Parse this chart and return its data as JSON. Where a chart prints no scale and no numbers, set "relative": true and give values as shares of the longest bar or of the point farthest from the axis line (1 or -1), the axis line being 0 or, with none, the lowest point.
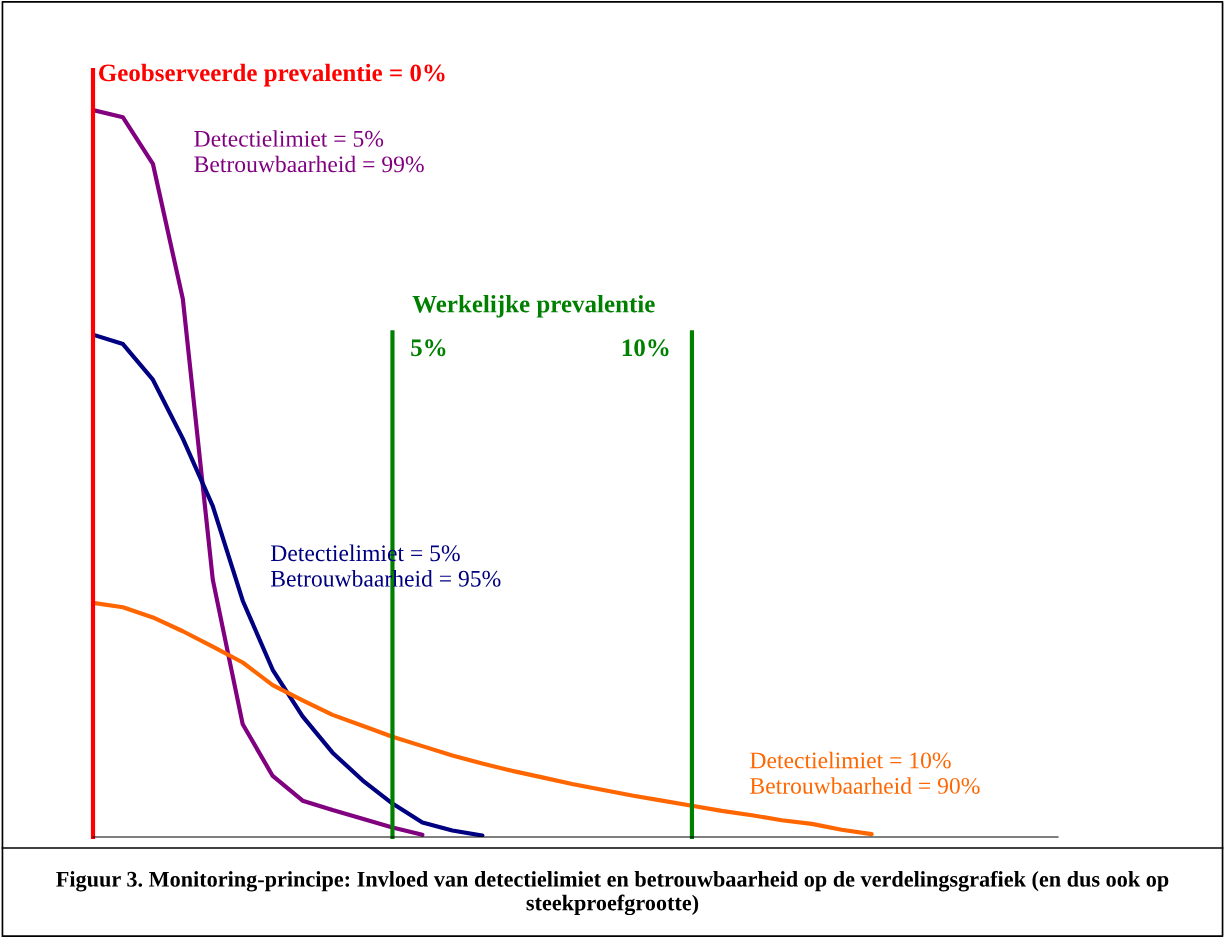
{
  "chart_data": {
    "type": "line",
    "relative": true,
    "categories": [
      null,
      null,
      null,
      null,
      null,
      null,
      null,
      null,
      null,
      null,
      null,
      null,
      null,
      null,
      null,
      null,
      null,
      null,
      null,
      null,
      null,
      null,
      null,
      null,
      null,
      null,
      null,
      null,
      null,
      null,
      null,
      null,
      null
    ],
    "tick_labels": false,
    "marker": "none",
    "line_style": "solid",
    "series": [
      {
        "name": "Detectielimiet = 5%\nBetrouwbaarheid = 99%",
        "color": "#800080",
        "values": [
          1,
          0.99,
          0.926,
          0.74,
          0.354,
          0.155,
          0.084,
          0.05,
          0.037,
          0.025,
          0.013,
          0.003,
          null,
          null,
          null,
          null,
          null,
          null,
          null,
          null,
          null,
          null,
          null,
          null,
          null,
          null,
          null,
          null,
          null,
          null,
          null,
          null,
          null
        ]
      },
      {
        "name": "Detectielimiet = 5%\nBetrouwbaarheid = 95%",
        "color": "#000080",
        "values": [
          0.691,
          0.678,
          0.629,
          0.548,
          0.455,
          0.325,
          0.23,
          0.166,
          0.116,
          0.078,
          0.046,
          0.02,
          0.009,
          0.002,
          null,
          null,
          null,
          null,
          null,
          null,
          null,
          null,
          null,
          null,
          null,
          null,
          null,
          null,
          null,
          null,
          null,
          null,
          null
        ]
      },
      {
        "name": "Detectielimiet = 10%\nBetrouwbaarheid = 90%",
        "color": "#ff6600",
        "values": [
          0.322,
          0.316,
          0.302,
          0.283,
          0.262,
          0.24,
          0.209,
          0.188,
          0.168,
          0.153,
          0.138,
          0.125,
          0.112,
          0.101,
          0.091,
          0.082,
          0.073,
          0.065,
          0.057,
          0.05,
          0.043,
          0.036,
          0.03,
          0.023,
          0.018,
          0.01,
          0.004,
          null,
          null,
          null,
          null,
          null,
          null
        ]
      }
    ],
    "annotations": [
      "Geobserveerde prevalentie = 0%",
      "Werkelijke prevalentie",
      "5%",
      "10%",
      "Figuur 3. Monitoring-principe: Invloed van detectielimiet en betrouwbaarheid op de verdelingsgrafiek (en dus ook op steekproefgrootte)"
    ]
  }
}
